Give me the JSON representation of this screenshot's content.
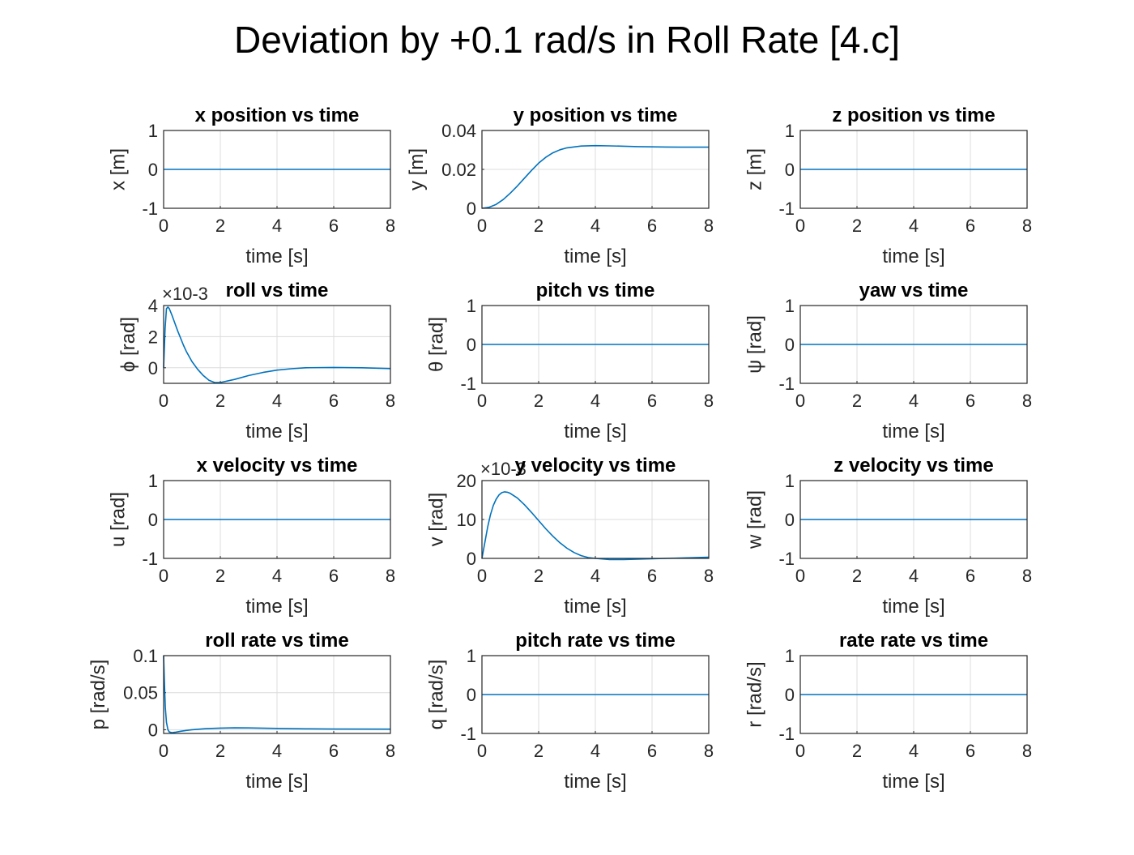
{
  "figure_title": "Deviation by +0.1 rad/s in Roll Rate [4.c]",
  "colors": {
    "line": "#0072BD",
    "axes": "#262626",
    "grid": "#dcdcdc",
    "title": "#000000",
    "background": "#ffffff"
  },
  "chart_data": [
    {
      "type": "line",
      "title": "x position vs time",
      "xlabel": "time [s]",
      "ylabel": "x [m]",
      "xlim": [
        0,
        8
      ],
      "ylim": [
        -1,
        1
      ],
      "grid": true,
      "xticks": [
        "0",
        "2",
        "4",
        "6",
        "8"
      ],
      "yticks": [
        "-1",
        "0",
        "1"
      ],
      "exponent_label": "",
      "x": [
        0,
        8
      ],
      "y": [
        0,
        0
      ]
    },
    {
      "type": "line",
      "title": "y position vs time",
      "xlabel": "time [s]",
      "ylabel": "y [m]",
      "xlim": [
        0,
        8
      ],
      "ylim": [
        0,
        0.04
      ],
      "grid": true,
      "xticks": [
        "0",
        "2",
        "4",
        "6",
        "8"
      ],
      "yticks": [
        "0",
        "0.02",
        "0.04"
      ],
      "exponent_label": "",
      "x": [
        0,
        0.25,
        0.5,
        0.75,
        1,
        1.25,
        1.5,
        1.75,
        2,
        2.25,
        2.5,
        2.75,
        3,
        3.5,
        4,
        4.5,
        5,
        5.5,
        6,
        6.5,
        7,
        7.5,
        8
      ],
      "y": [
        0,
        0.0005,
        0.002,
        0.0045,
        0.0078,
        0.0115,
        0.0155,
        0.0195,
        0.0232,
        0.0262,
        0.0285,
        0.0301,
        0.0311,
        0.032,
        0.0322,
        0.0321,
        0.0319,
        0.0317,
        0.0316,
        0.0315,
        0.0314,
        0.0314,
        0.0314
      ]
    },
    {
      "type": "line",
      "title": "z position vs time",
      "xlabel": "time [s]",
      "ylabel": "z [m]",
      "xlim": [
        0,
        8
      ],
      "ylim": [
        -1,
        1
      ],
      "grid": true,
      "xticks": [
        "0",
        "2",
        "4",
        "6",
        "8"
      ],
      "yticks": [
        "-1",
        "0",
        "1"
      ],
      "exponent_label": "",
      "x": [
        0,
        8
      ],
      "y": [
        0,
        0
      ]
    },
    {
      "type": "line",
      "title": "roll vs time",
      "xlabel": "time [s]",
      "ylabel": "ϕ [rad]",
      "xlim": [
        0,
        8
      ],
      "ylim": [
        -1,
        4
      ],
      "grid": true,
      "xticks": [
        "0",
        "2",
        "4",
        "6",
        "8"
      ],
      "yticks": [
        "0",
        "2",
        "4"
      ],
      "exponent_label": "×10-3",
      "x": [
        0,
        0.05,
        0.1,
        0.15,
        0.2,
        0.3,
        0.4,
        0.5,
        0.6,
        0.7,
        0.8,
        1,
        1.2,
        1.4,
        1.6,
        1.8,
        2,
        2.5,
        3,
        3.5,
        4,
        4.5,
        5,
        6,
        7,
        8
      ],
      "y": [
        0,
        2.5,
        3.8,
        3.9,
        3.8,
        3.35,
        2.85,
        2.35,
        1.9,
        1.45,
        1.05,
        0.4,
        -0.1,
        -0.5,
        -0.8,
        -0.95,
        -0.95,
        -0.75,
        -0.5,
        -0.3,
        -0.15,
        -0.06,
        0,
        0.02,
        0,
        -0.05
      ]
    },
    {
      "type": "line",
      "title": "pitch vs time",
      "xlabel": "time [s]",
      "ylabel": "θ [rad]",
      "xlim": [
        0,
        8
      ],
      "ylim": [
        -1,
        1
      ],
      "grid": true,
      "xticks": [
        "0",
        "2",
        "4",
        "6",
        "8"
      ],
      "yticks": [
        "-1",
        "0",
        "1"
      ],
      "exponent_label": "",
      "x": [
        0,
        8
      ],
      "y": [
        0,
        0
      ]
    },
    {
      "type": "line",
      "title": "yaw vs time",
      "xlabel": "time [s]",
      "ylabel": "ψ [rad]",
      "xlim": [
        0,
        8
      ],
      "ylim": [
        -1,
        1
      ],
      "grid": true,
      "xticks": [
        "0",
        "2",
        "4",
        "6",
        "8"
      ],
      "yticks": [
        "-1",
        "0",
        "1"
      ],
      "exponent_label": "",
      "x": [
        0,
        8
      ],
      "y": [
        0,
        0
      ]
    },
    {
      "type": "line",
      "title": "x velocity vs time",
      "xlabel": "time [s]",
      "ylabel": "u [rad]",
      "xlim": [
        0,
        8
      ],
      "ylim": [
        -1,
        1
      ],
      "grid": true,
      "xticks": [
        "0",
        "2",
        "4",
        "6",
        "8"
      ],
      "yticks": [
        "-1",
        "0",
        "1"
      ],
      "exponent_label": "",
      "x": [
        0,
        8
      ],
      "y": [
        0,
        0
      ]
    },
    {
      "type": "line",
      "title": "y velocity vs time",
      "xlabel": "time [s]",
      "ylabel": "v [rad]",
      "xlim": [
        0,
        8
      ],
      "ylim": [
        0,
        20
      ],
      "grid": true,
      "xticks": [
        "0",
        "2",
        "4",
        "6",
        "8"
      ],
      "yticks": [
        "0",
        "10",
        "20"
      ],
      "exponent_label": "×10-3",
      "x": [
        0,
        0.1,
        0.2,
        0.3,
        0.4,
        0.5,
        0.6,
        0.7,
        0.8,
        0.9,
        1,
        1.25,
        1.5,
        1.75,
        2,
        2.25,
        2.5,
        2.75,
        3,
        3.25,
        3.5,
        3.75,
        4,
        4.5,
        5,
        5.5,
        6,
        7,
        8
      ],
      "y": [
        0,
        4,
        8,
        11.2,
        13.6,
        15.2,
        16.3,
        16.9,
        17.1,
        17,
        16.7,
        15.5,
        13.8,
        11.8,
        9.7,
        7.6,
        5.7,
        4,
        2.6,
        1.5,
        0.7,
        0.2,
        0,
        -0.3,
        -0.3,
        -0.2,
        -0.1,
        0.1,
        0.3
      ]
    },
    {
      "type": "line",
      "title": "z velocity vs time",
      "xlabel": "time [s]",
      "ylabel": "w [rad]",
      "xlim": [
        0,
        8
      ],
      "ylim": [
        -1,
        1
      ],
      "grid": true,
      "xticks": [
        "0",
        "2",
        "4",
        "6",
        "8"
      ],
      "yticks": [
        "-1",
        "0",
        "1"
      ],
      "exponent_label": "",
      "x": [
        0,
        8
      ],
      "y": [
        0,
        0
      ]
    },
    {
      "type": "line",
      "title": "roll rate vs time",
      "xlabel": "time [s]",
      "ylabel": "p [rad/s]",
      "xlim": [
        0,
        8
      ],
      "ylim": [
        -0.005,
        0.1
      ],
      "grid": true,
      "xticks": [
        "0",
        "2",
        "4",
        "6",
        "8"
      ],
      "yticks": [
        "0",
        "0.05",
        "0.1"
      ],
      "exponent_label": "",
      "x": [
        0,
        0.03,
        0.06,
        0.1,
        0.15,
        0.2,
        0.3,
        0.4,
        0.6,
        0.8,
        1,
        1.5,
        2,
        2.5,
        3,
        4,
        5,
        6,
        8
      ],
      "y": [
        0.1,
        0.06,
        0.03,
        0.01,
        0,
        -0.003,
        -0.004,
        -0.0035,
        -0.002,
        -0.001,
        0,
        0.0015,
        0.0022,
        0.0025,
        0.0024,
        0.0018,
        0.0012,
        0.0009,
        0.0008
      ]
    },
    {
      "type": "line",
      "title": "pitch rate vs time",
      "xlabel": "time [s]",
      "ylabel": "q [rad/s]",
      "xlim": [
        0,
        8
      ],
      "ylim": [
        -1,
        1
      ],
      "grid": true,
      "xticks": [
        "0",
        "2",
        "4",
        "6",
        "8"
      ],
      "yticks": [
        "-1",
        "0",
        "1"
      ],
      "exponent_label": "",
      "x": [
        0,
        8
      ],
      "y": [
        0,
        0
      ]
    },
    {
      "type": "line",
      "title": "rate rate vs time",
      "xlabel": "time [s]",
      "ylabel": "r [rad/s]",
      "xlim": [
        0,
        8
      ],
      "ylim": [
        -1,
        1
      ],
      "grid": true,
      "xticks": [
        "0",
        "2",
        "4",
        "6",
        "8"
      ],
      "yticks": [
        "-1",
        "0",
        "1"
      ],
      "exponent_label": "",
      "x": [
        0,
        8
      ],
      "y": [
        0,
        0
      ]
    }
  ]
}
